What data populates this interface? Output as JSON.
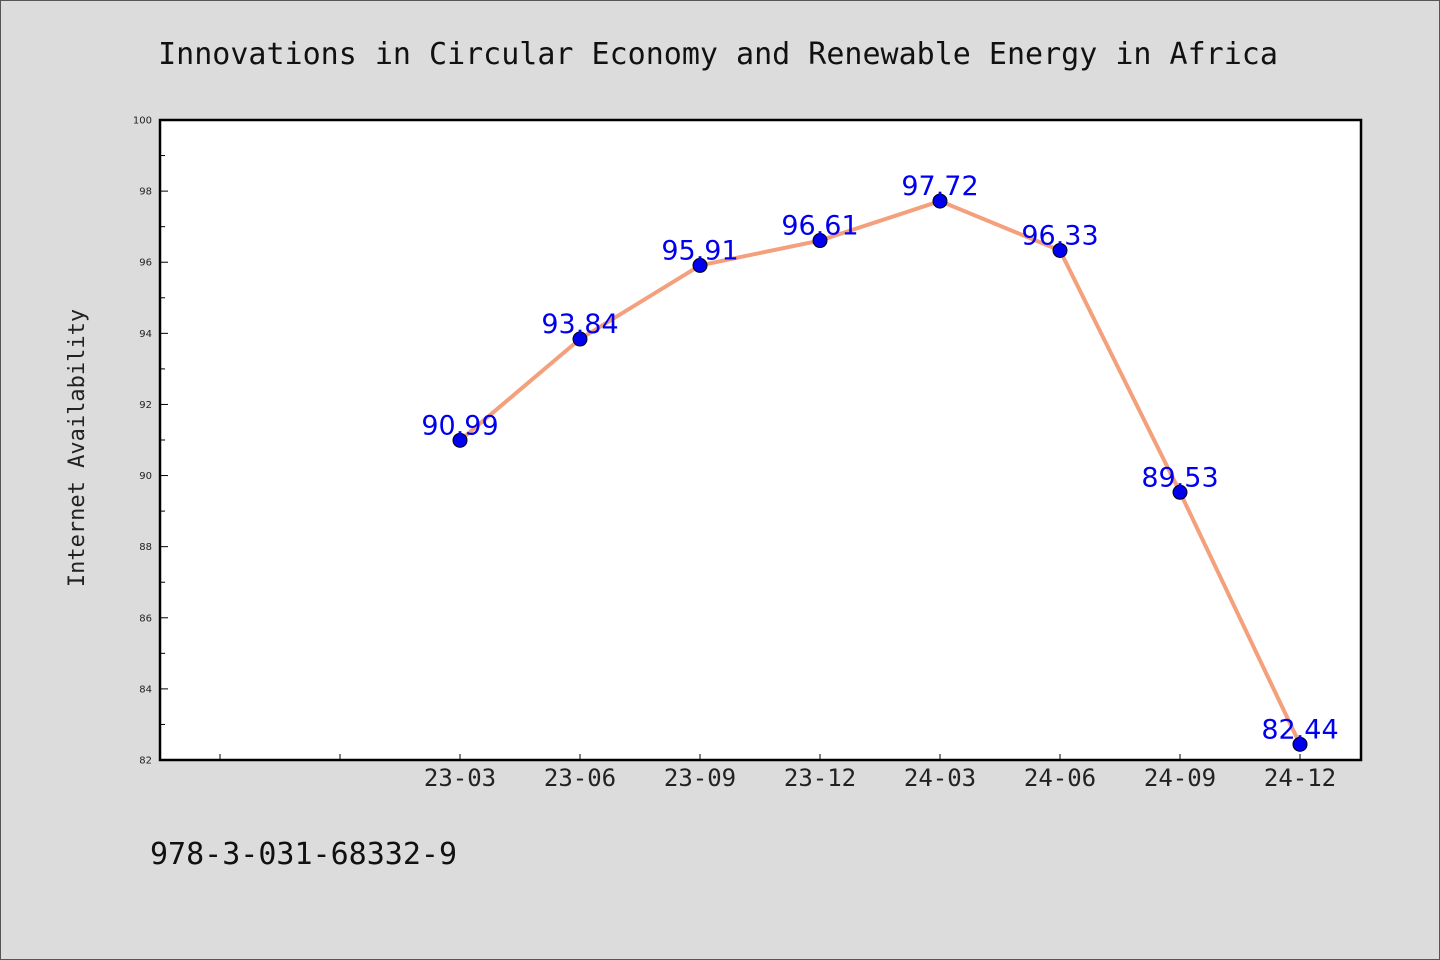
{
  "chart_data": {
    "type": "line",
    "title": "Innovations in Circular Economy and Renewable Energy in Africa",
    "xlabel": "",
    "ylabel": "Internet Availability",
    "categories": [
      "23-03",
      "23-06",
      "23-09",
      "23-12",
      "24-03",
      "24-06",
      "24-09",
      "24-12"
    ],
    "values": [
      90.99,
      93.84,
      95.91,
      96.61,
      97.72,
      96.33,
      89.53,
      82.44
    ],
    "data_labels": [
      "90.99",
      "93.84",
      "95.91",
      "96.61",
      "97.72",
      "96.33",
      "89.53",
      "82.44"
    ],
    "ylim": [
      82,
      100
    ],
    "yticks": [
      82,
      84,
      86,
      88,
      90,
      92,
      94,
      96,
      98,
      100
    ],
    "ytick_labels": [
      "82",
      "84",
      "86",
      "88",
      "90",
      "92",
      "94",
      "96",
      "98",
      "100"
    ],
    "grid": false,
    "legend": "none",
    "line_color": "#f4a07c",
    "marker_color": "#0000ee",
    "label_color": "#0000ee"
  },
  "footer_text": "978-3-031-68332-9"
}
